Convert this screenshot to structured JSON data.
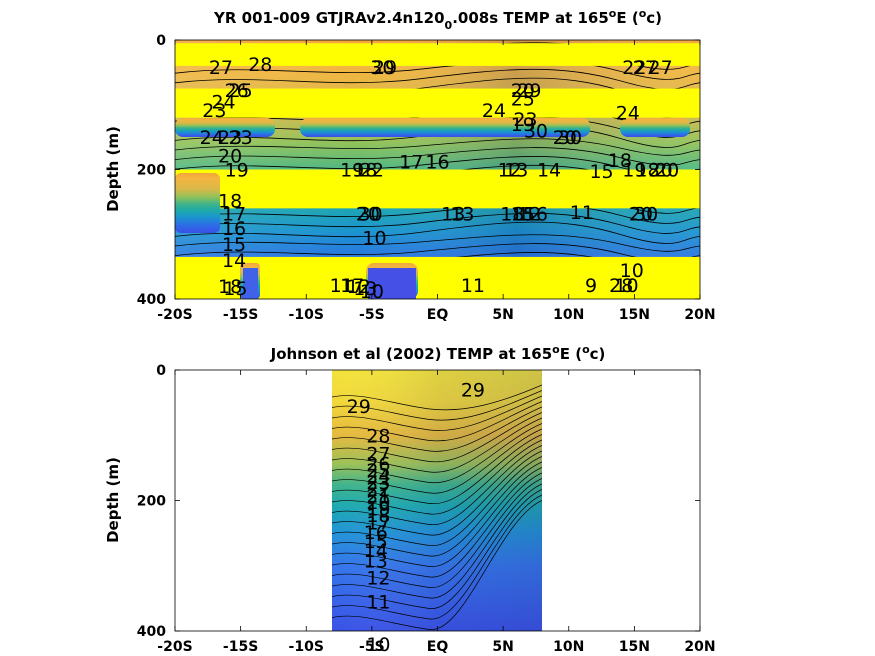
{
  "chart_data": [
    {
      "type": "heatmap",
      "title": {
        "pre": "YR 001-009 GTJRAv2.4n120",
        "sub": "0",
        "post": ".008s TEMP at 165",
        "deg": "o",
        "unit_pre": "E (",
        "unit_deg": "o",
        "unit_post": "c)"
      },
      "ylabel": "Depth (m)",
      "xlim": [
        -20,
        20
      ],
      "ylim": [
        400,
        0
      ],
      "x_ticks": [
        {
          "value": -20,
          "label": "-20S"
        },
        {
          "value": -15,
          "label": "-15S"
        },
        {
          "value": -10,
          "label": "-10S"
        },
        {
          "value": -5,
          "label": "-5S"
        },
        {
          "value": 0,
          "label": "EQ"
        },
        {
          "value": 5,
          "label": "5N"
        },
        {
          "value": 10,
          "label": "10N"
        },
        {
          "value": 15,
          "label": "15N"
        },
        {
          "value": 20,
          "label": "20N"
        }
      ],
      "y_ticks": [
        {
          "value": 0,
          "label": "0"
        },
        {
          "value": 200,
          "label": "200"
        },
        {
          "value": 400,
          "label": "400"
        }
      ],
      "mask_bands_depth": [
        [
          5,
          40
        ],
        [
          75,
          120
        ],
        [
          200,
          260
        ],
        [
          335,
          400
        ]
      ],
      "contour_labels": [
        {
          "x": -16.5,
          "y": 42,
          "text": "27"
        },
        {
          "x": -13.5,
          "y": 37,
          "text": "28"
        },
        {
          "x": -4,
          "y": 42,
          "text": "29"
        },
        {
          "x": -4.2,
          "y": 42,
          "text": "30"
        },
        {
          "x": 15,
          "y": 42,
          "text": "22"
        },
        {
          "x": 15.8,
          "y": 42,
          "text": "27"
        },
        {
          "x": 17,
          "y": 42,
          "text": "27"
        },
        {
          "x": -15.3,
          "y": 77,
          "text": "26"
        },
        {
          "x": -15,
          "y": 77,
          "text": "25"
        },
        {
          "x": -16.3,
          "y": 95,
          "text": "24"
        },
        {
          "x": -17,
          "y": 108,
          "text": "23"
        },
        {
          "x": 6.5,
          "y": 77,
          "text": "20"
        },
        {
          "x": 7,
          "y": 77,
          "text": "29"
        },
        {
          "x": 6.5,
          "y": 90,
          "text": "25"
        },
        {
          "x": 4.3,
          "y": 108,
          "text": "24"
        },
        {
          "x": 14.5,
          "y": 112,
          "text": "24"
        },
        {
          "x": 6.5,
          "y": 130,
          "text": "19"
        },
        {
          "x": 6.7,
          "y": 122,
          "text": "23"
        },
        {
          "x": 7.5,
          "y": 140,
          "text": "30"
        },
        {
          "x": 9.7,
          "y": 150,
          "text": "20"
        },
        {
          "x": 10.1,
          "y": 150,
          "text": "30"
        },
        {
          "x": -17.2,
          "y": 150,
          "text": "24"
        },
        {
          "x": -15.8,
          "y": 150,
          "text": "23"
        },
        {
          "x": -15,
          "y": 150,
          "text": "23"
        },
        {
          "x": -15.8,
          "y": 178,
          "text": "20"
        },
        {
          "x": -15.3,
          "y": 200,
          "text": "19"
        },
        {
          "x": -6.5,
          "y": 200,
          "text": "19"
        },
        {
          "x": -5.5,
          "y": 200,
          "text": "18"
        },
        {
          "x": -5,
          "y": 200,
          "text": "22"
        },
        {
          "x": -2,
          "y": 188,
          "text": "17"
        },
        {
          "x": 0,
          "y": 188,
          "text": "16"
        },
        {
          "x": 5.5,
          "y": 200,
          "text": "12"
        },
        {
          "x": 6,
          "y": 200,
          "text": "13"
        },
        {
          "x": 8.5,
          "y": 200,
          "text": "14"
        },
        {
          "x": 12.5,
          "y": 202,
          "text": "15"
        },
        {
          "x": 13.9,
          "y": 185,
          "text": "18"
        },
        {
          "x": 15,
          "y": 200,
          "text": "19"
        },
        {
          "x": 16,
          "y": 200,
          "text": "18"
        },
        {
          "x": 17,
          "y": 200,
          "text": "20"
        },
        {
          "x": 17.5,
          "y": 200,
          "text": "20"
        },
        {
          "x": -15.8,
          "y": 248,
          "text": "18"
        },
        {
          "x": -15.5,
          "y": 268,
          "text": "17"
        },
        {
          "x": -15.5,
          "y": 290,
          "text": "16"
        },
        {
          "x": -15.5,
          "y": 315,
          "text": "15"
        },
        {
          "x": -15.5,
          "y": 340,
          "text": "14"
        },
        {
          "x": -5.3,
          "y": 268,
          "text": "20"
        },
        {
          "x": -5.1,
          "y": 268,
          "text": "30"
        },
        {
          "x": 1.2,
          "y": 268,
          "text": "13"
        },
        {
          "x": 1.9,
          "y": 268,
          "text": "13"
        },
        {
          "x": 5.7,
          "y": 268,
          "text": "18"
        },
        {
          "x": 6.5,
          "y": 268,
          "text": "15"
        },
        {
          "x": 7,
          "y": 268,
          "text": "12"
        },
        {
          "x": 7.5,
          "y": 268,
          "text": "16"
        },
        {
          "x": 11,
          "y": 266,
          "text": "11"
        },
        {
          "x": 15.5,
          "y": 268,
          "text": "20"
        },
        {
          "x": 15.9,
          "y": 268,
          "text": "30"
        },
        {
          "x": -4.8,
          "y": 305,
          "text": "10"
        },
        {
          "x": -15.8,
          "y": 380,
          "text": "18"
        },
        {
          "x": -15.4,
          "y": 383,
          "text": "15"
        },
        {
          "x": -7.3,
          "y": 378,
          "text": "11"
        },
        {
          "x": -6.5,
          "y": 378,
          "text": "17"
        },
        {
          "x": -6,
          "y": 380,
          "text": "12"
        },
        {
          "x": -5.5,
          "y": 383,
          "text": "13"
        },
        {
          "x": -5,
          "y": 388,
          "text": "10"
        },
        {
          "x": 2.7,
          "y": 378,
          "text": "11"
        },
        {
          "x": 11.7,
          "y": 378,
          "text": "9"
        },
        {
          "x": 14,
          "y": 378,
          "text": "28"
        },
        {
          "x": 14.4,
          "y": 378,
          "text": "10"
        },
        {
          "x": 14.8,
          "y": 355,
          "text": "10"
        }
      ]
    },
    {
      "type": "heatmap",
      "title": {
        "pre": "Johnson et al (2002) TEMP at 165",
        "deg": "o",
        "unit_pre": "E (",
        "unit_deg": "o",
        "unit_post": "c)"
      },
      "ylabel": "Depth (m)",
      "xlim": [
        -20,
        20
      ],
      "ylim": [
        400,
        0
      ],
      "data_extent_x": [
        -8,
        8
      ],
      "x_ticks": [
        {
          "value": -20,
          "label": "-20S"
        },
        {
          "value": -15,
          "label": "-15S"
        },
        {
          "value": -10,
          "label": "-10S"
        },
        {
          "value": -5,
          "label": "-5S"
        },
        {
          "value": 0,
          "label": "EQ"
        },
        {
          "value": 5,
          "label": "5N"
        },
        {
          "value": 10,
          "label": "10N"
        },
        {
          "value": 15,
          "label": "15N"
        },
        {
          "value": 20,
          "label": "20N"
        }
      ],
      "y_ticks": [
        {
          "value": 0,
          "label": "0"
        },
        {
          "value": 200,
          "label": "200"
        },
        {
          "value": 400,
          "label": "400"
        }
      ],
      "contour_labels": [
        {
          "x": -6,
          "y": 55,
          "text": "29"
        },
        {
          "x": 2.7,
          "y": 30,
          "text": "29"
        },
        {
          "x": -4.5,
          "y": 100,
          "text": "28"
        },
        {
          "x": -4.5,
          "y": 128,
          "text": "27"
        },
        {
          "x": -4.5,
          "y": 143,
          "text": "26"
        },
        {
          "x": -4.5,
          "y": 153,
          "text": "25"
        },
        {
          "x": -4.5,
          "y": 162,
          "text": "24"
        },
        {
          "x": -4.5,
          "y": 172,
          "text": "23"
        },
        {
          "x": -4.5,
          "y": 182,
          "text": "22"
        },
        {
          "x": -4.5,
          "y": 192,
          "text": "21"
        },
        {
          "x": -4.5,
          "y": 202,
          "text": "20"
        },
        {
          "x": -4.5,
          "y": 212,
          "text": "19"
        },
        {
          "x": -4.5,
          "y": 222,
          "text": "18"
        },
        {
          "x": -4.5,
          "y": 234,
          "text": "17"
        },
        {
          "x": -4.7,
          "y": 248,
          "text": "16"
        },
        {
          "x": -4.7,
          "y": 262,
          "text": "15"
        },
        {
          "x": -4.7,
          "y": 276,
          "text": "14"
        },
        {
          "x": -4.7,
          "y": 292,
          "text": "13"
        },
        {
          "x": -4.5,
          "y": 318,
          "text": "12"
        },
        {
          "x": -4.5,
          "y": 355,
          "text": "11"
        },
        {
          "x": -4.5,
          "y": 420,
          "text": "10"
        }
      ]
    }
  ]
}
